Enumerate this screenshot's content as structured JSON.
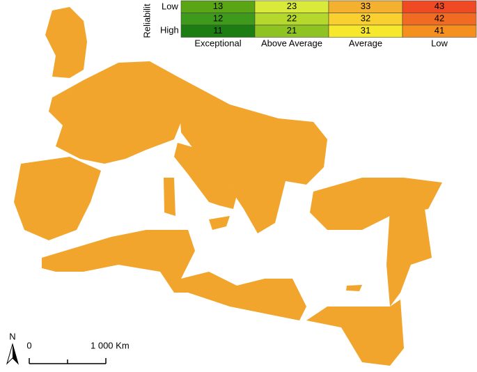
{
  "legend": {
    "title": "Reliabilit",
    "row_labels": [
      "Low",
      "High"
    ],
    "cells": [
      [
        13,
        23,
        33,
        43
      ],
      [
        12,
        22,
        32,
        42
      ],
      [
        11,
        21,
        31,
        41
      ]
    ],
    "column_labels": [
      "Exceptional",
      "Above Average",
      "Average",
      "Low"
    ]
  },
  "scale_bar": {
    "start_label": "0",
    "end_label": "1 000 Km"
  },
  "north_arrow": {
    "label": "N"
  }
}
